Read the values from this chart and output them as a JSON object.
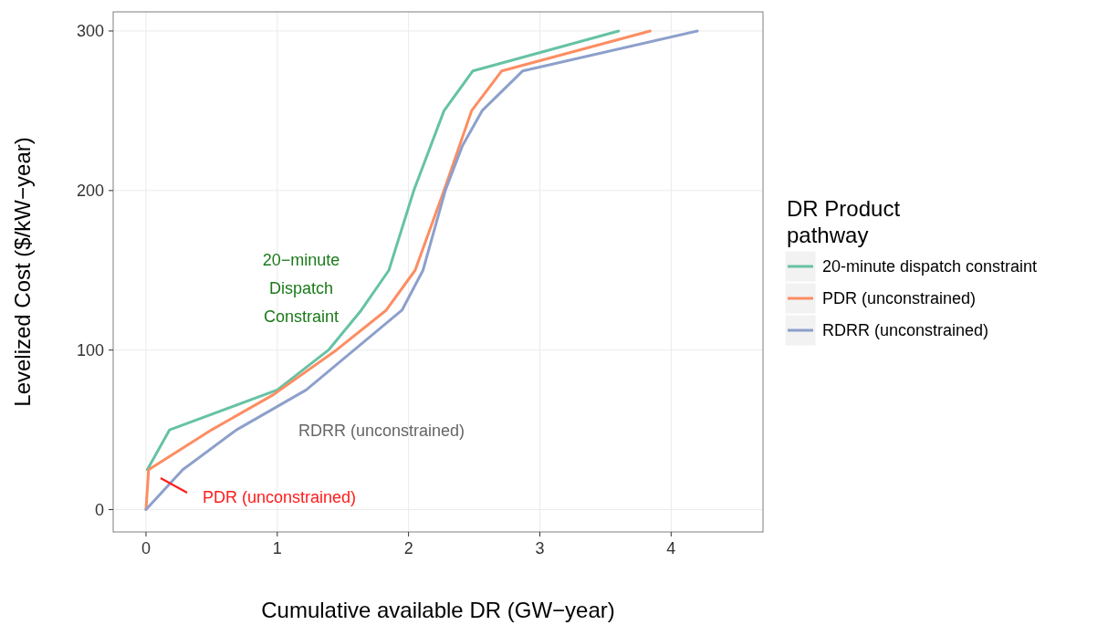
{
  "chart_data": {
    "type": "line",
    "xlabel": "Cumulative available DR (GW−year)",
    "ylabel": "Levelized Cost ($/kW−year)",
    "legend_title": "DR Product\npathway",
    "legend": "right",
    "grid": true,
    "marker": "none",
    "line_style": "solid",
    "xlim": [
      -0.25,
      4.7
    ],
    "xticks": [
      0,
      1,
      2,
      3,
      4
    ],
    "ylim": [
      -14,
      312
    ],
    "yticks": [
      0,
      100,
      200,
      300
    ],
    "series": [
      {
        "name": "20-minute dispatch constraint",
        "color": "#66c2a5",
        "x": [
          0.01,
          0.18,
          1.0,
          1.39,
          1.64,
          1.85,
          2.04,
          2.27,
          2.49,
          3.6
        ],
        "values": [
          25,
          50,
          75,
          100,
          125,
          150,
          200,
          250,
          275,
          300
        ]
      },
      {
        "name": "PDR (unconstrained)",
        "color": "#fc8d62",
        "x": [
          0,
          0.02,
          0.5,
          0.97,
          1.45,
          1.83,
          2.05,
          2.27,
          2.48,
          2.71,
          3.84
        ],
        "values": [
          0,
          25,
          50,
          72,
          100,
          125,
          150,
          200,
          250,
          275,
          300
        ]
      },
      {
        "name": "RDRR (unconstrained)",
        "color": "#8da0cb",
        "x": [
          0,
          0.28,
          0.69,
          1.22,
          1.95,
          2.11,
          2.28,
          2.41,
          2.56,
          2.87,
          4.2
        ],
        "values": [
          0,
          25,
          50,
          75,
          125,
          150,
          200,
          228,
          250,
          275,
          300
        ]
      }
    ],
    "annotations": [
      "20−minute\nDispatch\nConstraint",
      "RDRR (unconstrained)",
      "PDR (unconstrained)"
    ]
  }
}
